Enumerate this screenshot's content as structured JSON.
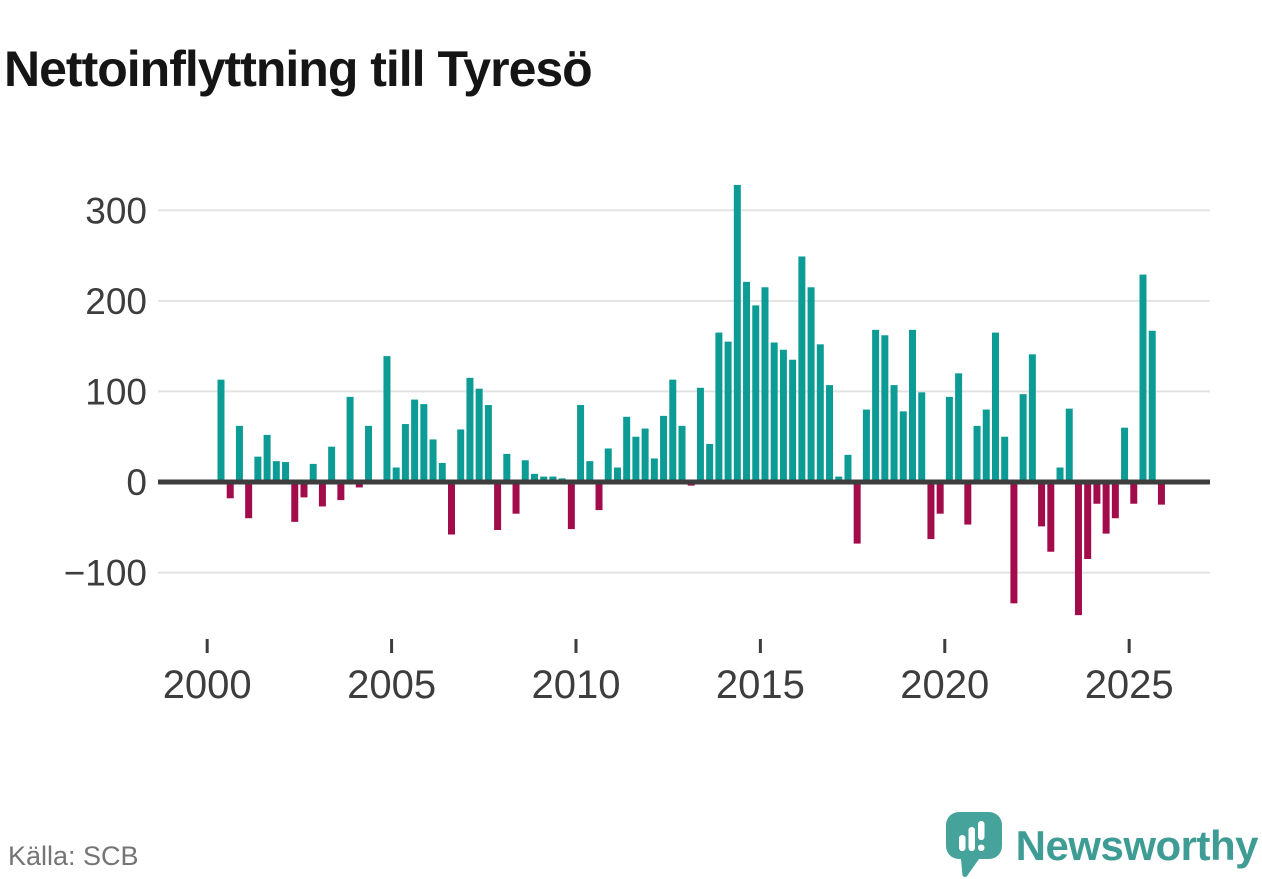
{
  "title": "Nettoinflyttning till Tyresö",
  "source": "Källa: SCB",
  "logo": {
    "text": "Newsworthy",
    "text_color": "#3E9C95",
    "bubble_color": "#46A39B"
  },
  "chart_data": {
    "type": "bar",
    "title": "Nettoinflyttning till Tyresö",
    "xlabel": "",
    "ylabel": "",
    "grid": true,
    "x_tick_labels": [
      "2000",
      "2005",
      "2010",
      "2015",
      "2020",
      "2025"
    ],
    "y_ticks": [
      -100,
      0,
      100,
      200,
      300
    ],
    "y_tick_labels": [
      "−100",
      "0",
      "100",
      "200",
      "300"
    ],
    "ylim": [
      -160,
      345
    ],
    "colors": {
      "positive": "#0D9C95",
      "negative": "#A30C4A",
      "gridline": "#E3E3E3",
      "zero_line": "#3D3D3D",
      "axis_text": "#3D3D3D"
    },
    "quarters": [
      "2000 Q2",
      "2000 Q3",
      "2000 Q4",
      "2001 Q1",
      "2001 Q2",
      "2001 Q3",
      "2001 Q4",
      "2002 Q1",
      "2002 Q2",
      "2002 Q3",
      "2002 Q4",
      "2003 Q1",
      "2003 Q2",
      "2003 Q3",
      "2003 Q4",
      "2004 Q1",
      "2004 Q2",
      "2004 Q3",
      "2004 Q4",
      "2005 Q1",
      "2005 Q2",
      "2005 Q3",
      "2005 Q4",
      "2006 Q1",
      "2006 Q2",
      "2006 Q3",
      "2006 Q4",
      "2007 Q1",
      "2007 Q2",
      "2007 Q3",
      "2007 Q4",
      "2008 Q1",
      "2008 Q2",
      "2008 Q3",
      "2008 Q4",
      "2009 Q1",
      "2009 Q2",
      "2009 Q3",
      "2009 Q4",
      "2010 Q1",
      "2010 Q2",
      "2010 Q3",
      "2010 Q4",
      "2011 Q1",
      "2011 Q2",
      "2011 Q3",
      "2011 Q4",
      "2012 Q1",
      "2012 Q2",
      "2012 Q3",
      "2012 Q4",
      "2013 Q1",
      "2013 Q2",
      "2013 Q3",
      "2013 Q4",
      "2014 Q1",
      "2014 Q2",
      "2014 Q3",
      "2014 Q4",
      "2015 Q1",
      "2015 Q2",
      "2015 Q3",
      "2015 Q4",
      "2016 Q1",
      "2016 Q2",
      "2016 Q3",
      "2016 Q4",
      "2017 Q1",
      "2017 Q2",
      "2017 Q3",
      "2017 Q4",
      "2018 Q1",
      "2018 Q2",
      "2018 Q3",
      "2018 Q4",
      "2019 Q1",
      "2019 Q2",
      "2019 Q3",
      "2019 Q4",
      "2020 Q1",
      "2020 Q2",
      "2020 Q3",
      "2020 Q4",
      "2021 Q1",
      "2021 Q2",
      "2021 Q3",
      "2021 Q4",
      "2022 Q1",
      "2022 Q2",
      "2022 Q3",
      "2022 Q4",
      "2023 Q1",
      "2023 Q2",
      "2023 Q3",
      "2023 Q4",
      "2024 Q1",
      "2024 Q2",
      "2024 Q3",
      "2024 Q4",
      "2025 Q1",
      "2025 Q2",
      "2025 Q3",
      "2025 Q4"
    ],
    "values": [
      113,
      -18,
      62,
      -40,
      28,
      52,
      23,
      22,
      -44,
      -17,
      20,
      -27,
      39,
      -20,
      94,
      -6,
      62,
      0,
      139,
      16,
      64,
      91,
      86,
      47,
      21,
      -58,
      58,
      115,
      103,
      85,
      -53,
      31,
      -35,
      24,
      9,
      6,
      6,
      4,
      -52,
      85,
      23,
      -31,
      37,
      16,
      72,
      50,
      59,
      26,
      73,
      113,
      62,
      -4,
      104,
      42,
      165,
      155,
      328,
      221,
      195,
      215,
      154,
      146,
      135,
      249,
      215,
      152,
      107,
      6,
      30,
      -68,
      80,
      168,
      162,
      107,
      78,
      168,
      99,
      -63,
      -35,
      94,
      120,
      -47,
      62,
      80,
      165,
      50,
      -134,
      97,
      141,
      -49,
      -77,
      16,
      81,
      -147,
      -85,
      -24,
      -57,
      -40,
      60,
      -24,
      229,
      167,
      -25
    ]
  }
}
